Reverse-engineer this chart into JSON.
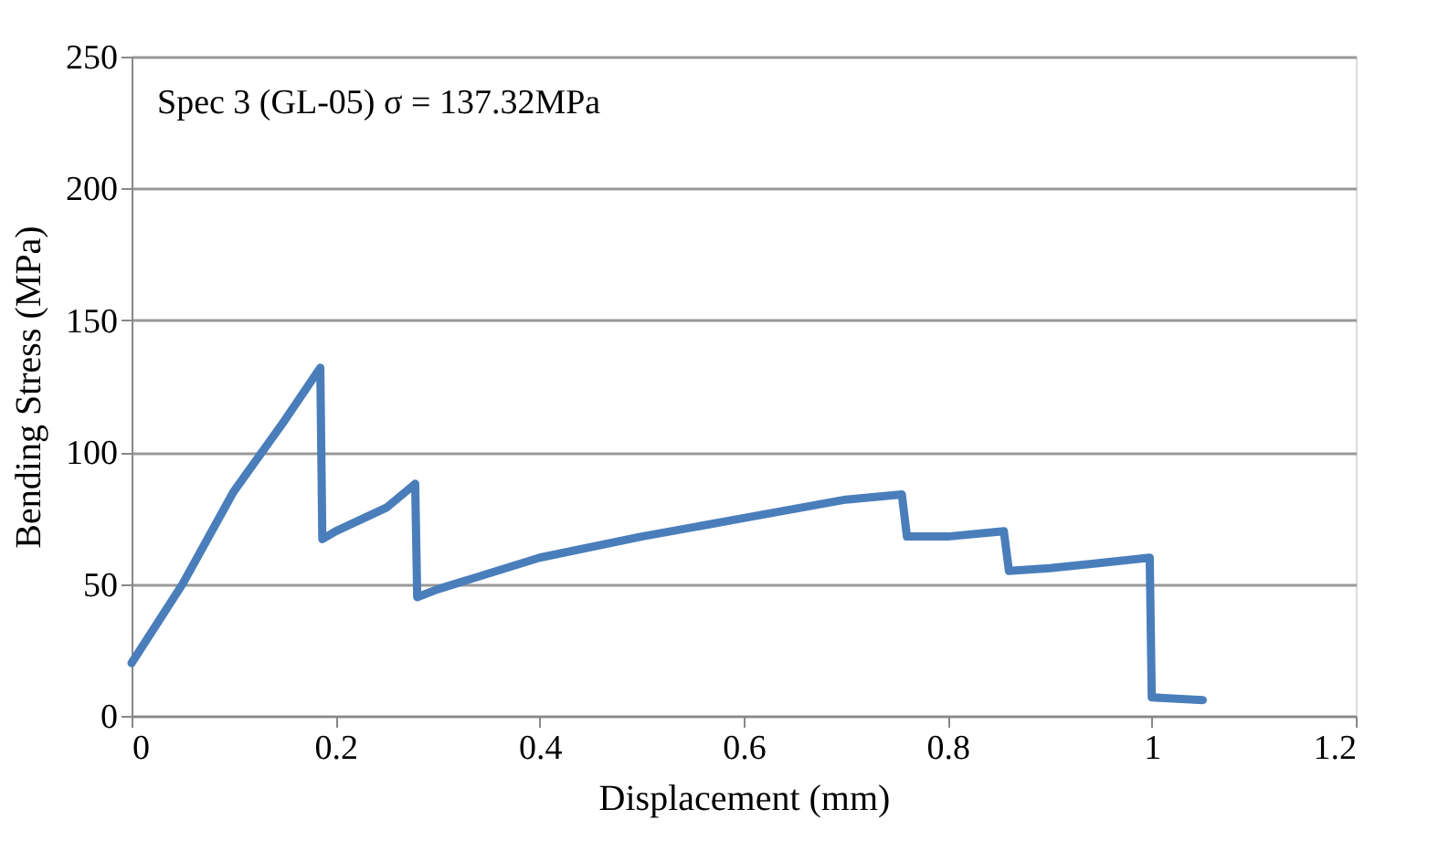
{
  "chart_data": {
    "type": "line",
    "xlabel": "Displacement (mm)",
    "ylabel": "Bending Stress (MPa)",
    "annotations": [
      "Spec 3 (GL-05) σ = 137.32MPa"
    ],
    "series": [
      {
        "color": "#4a7ebb",
        "x": [
          0,
          0.05,
          0.1,
          0.15,
          0.185,
          0.187,
          0.2,
          0.25,
          0.278,
          0.28,
          0.3,
          0.4,
          0.5,
          0.6,
          0.7,
          0.755,
          0.76,
          0.8,
          0.855,
          0.86,
          0.9,
          0.95,
          0.998,
          1.0,
          1.05
        ],
        "values": [
          20,
          50,
          85,
          112,
          132,
          67,
          70,
          79,
          88,
          45,
          48,
          60,
          68,
          75,
          82,
          84,
          68,
          68,
          70,
          55,
          56,
          58,
          60,
          7,
          6
        ]
      }
    ],
    "xlim": [
      0,
      1.2
    ],
    "xticks": [
      0,
      0.2,
      0.4,
      0.6,
      0.8,
      1,
      1.2
    ],
    "ylim": [
      0,
      250
    ],
    "yticks": [
      0,
      50,
      100,
      150,
      200,
      250
    ],
    "grid": "y",
    "marker": "none",
    "line_style": "solid"
  }
}
